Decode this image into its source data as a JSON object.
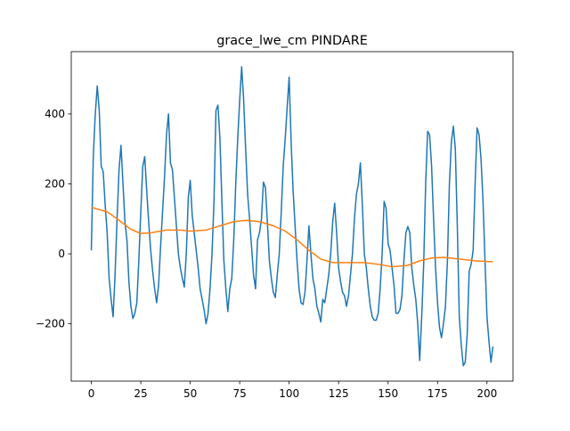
{
  "chart_data": {
    "type": "line",
    "title": "grace_lwe_cm PINDARE",
    "xlim": [
      -10.15,
      213.15
    ],
    "xticks": [
      0,
      25,
      50,
      75,
      100,
      125,
      150,
      175,
      200
    ],
    "ylim": [
      -364,
      578
    ],
    "yticks": [
      {
        "value": -200,
        "label": "−200"
      },
      0,
      200,
      400
    ],
    "grid": false,
    "series": [
      {
        "color": "#1f77b4",
        "x": [
          0,
          1,
          2,
          3,
          4,
          5,
          6,
          7,
          8,
          9,
          10,
          11,
          12,
          13,
          14,
          15,
          16,
          17,
          18,
          19,
          20,
          21,
          22,
          23,
          24,
          25,
          26,
          27,
          28,
          29,
          30,
          31,
          32,
          33,
          34,
          35,
          36,
          37,
          38,
          39,
          40,
          41,
          42,
          43,
          44,
          45,
          46,
          47,
          48,
          49,
          50,
          51,
          52,
          53,
          54,
          55,
          56,
          57,
          58,
          59,
          60,
          61,
          62,
          63,
          64,
          65,
          66,
          67,
          68,
          69,
          70,
          71,
          72,
          73,
          74,
          75,
          76,
          77,
          78,
          79,
          80,
          81,
          82,
          83,
          84,
          85,
          86,
          87,
          88,
          89,
          90,
          91,
          92,
          93,
          94,
          95,
          96,
          97,
          98,
          99,
          100,
          101,
          102,
          103,
          104,
          105,
          106,
          107,
          108,
          109,
          110,
          111,
          112,
          113,
          114,
          115,
          116,
          117,
          118,
          119,
          120,
          121,
          122,
          123,
          124,
          125,
          126,
          127,
          128,
          129,
          130,
          131,
          132,
          133,
          134,
          135,
          136,
          137,
          138,
          139,
          140,
          141,
          142,
          143,
          144,
          145,
          146,
          147,
          148,
          149,
          150,
          151,
          152,
          153,
          154,
          155,
          156,
          157,
          158,
          159,
          160,
          161,
          162,
          163,
          164,
          165,
          166,
          167,
          168,
          169,
          170,
          171,
          172,
          173,
          174,
          175,
          176,
          177,
          178,
          179,
          180,
          181,
          182,
          183,
          184,
          185,
          186,
          187,
          188,
          189,
          190,
          191,
          192,
          193,
          194,
          195,
          196,
          197,
          198,
          199,
          200,
          201,
          202,
          203
        ],
        "values": [
          10,
          280,
          400,
          480,
          410,
          250,
          235,
          140,
          60,
          -70,
          -130,
          -180,
          -60,
          100,
          240,
          310,
          200,
          90,
          40,
          -80,
          -150,
          -185,
          -170,
          -140,
          -20,
          120,
          250,
          278,
          180,
          90,
          10,
          -50,
          -100,
          -140,
          -90,
          20,
          120,
          220,
          340,
          400,
          260,
          240,
          160,
          80,
          0,
          -40,
          -70,
          -95,
          0,
          160,
          210,
          110,
          60,
          10,
          -40,
          -100,
          -130,
          -160,
          -200,
          -170,
          -100,
          0,
          150,
          410,
          425,
          330,
          150,
          -20,
          -100,
          -165,
          -100,
          -70,
          40,
          200,
          330,
          440,
          535,
          440,
          300,
          170,
          100,
          20,
          -60,
          -100,
          40,
          60,
          100,
          205,
          190,
          90,
          -20,
          -70,
          -110,
          -125,
          -60,
          0,
          120,
          250,
          330,
          420,
          505,
          320,
          180,
          80,
          -20,
          -100,
          -140,
          -145,
          -110,
          -20,
          80,
          0,
          -70,
          -100,
          -150,
          -170,
          -195,
          -130,
          -140,
          -100,
          -60,
          0,
          90,
          145,
          60,
          -40,
          -80,
          -110,
          -120,
          -150,
          -120,
          -60,
          0,
          100,
          170,
          200,
          260,
          140,
          0,
          -40,
          -100,
          -150,
          -180,
          -190,
          -190,
          -170,
          -100,
          0,
          150,
          130,
          30,
          10,
          -40,
          -90,
          -170,
          -170,
          -160,
          -120,
          -20,
          60,
          78,
          60,
          -40,
          -90,
          -130,
          -200,
          -305,
          -180,
          -30,
          200,
          350,
          340,
          250,
          100,
          -40,
          -140,
          -210,
          -240,
          -200,
          -150,
          -20,
          200,
          320,
          365,
          300,
          80,
          -180,
          -260,
          -320,
          -310,
          -230,
          -50,
          -30,
          10,
          200,
          360,
          340,
          270,
          150,
          -20,
          -180,
          -250,
          -310,
          -265
        ]
      },
      {
        "color": "#ff7f0e",
        "x": [
          0,
          8,
          13,
          20,
          25,
          30,
          38,
          45,
          50,
          58,
          65,
          72,
          78,
          85,
          92,
          98,
          104,
          110,
          116,
          122,
          130,
          138,
          145,
          152,
          160,
          166,
          172,
          178,
          186,
          194,
          203
        ],
        "values": [
          133,
          120,
          100,
          70,
          58,
          60,
          68,
          68,
          65,
          68,
          80,
          92,
          96,
          92,
          80,
          65,
          40,
          10,
          -15,
          -25,
          -25,
          -25,
          -30,
          -37,
          -33,
          -20,
          -12,
          -10,
          -15,
          -20,
          -23
        ]
      }
    ]
  }
}
